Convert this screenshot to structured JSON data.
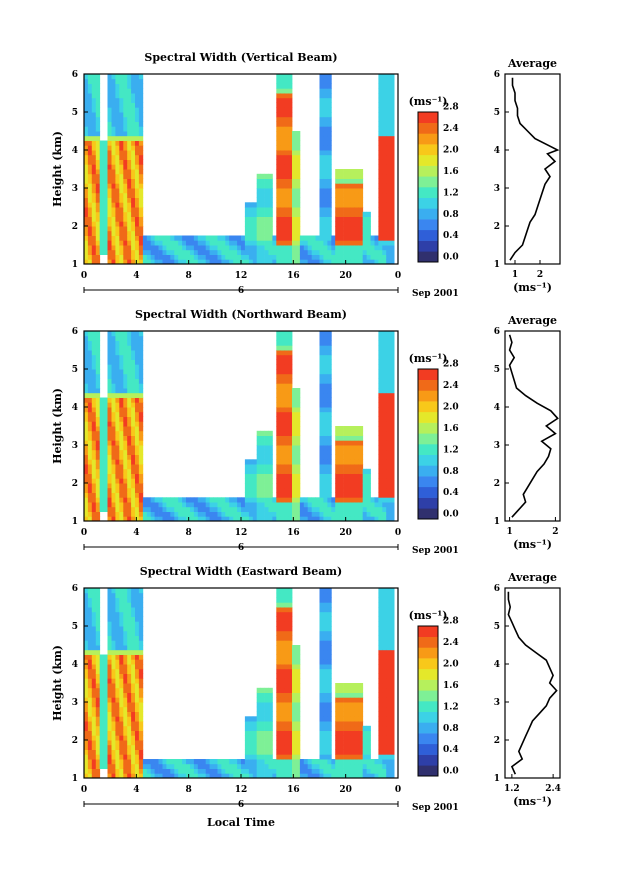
{
  "xlabel_bottom": "Local Time",
  "colorbar": {
    "unit_label": "(ms⁻¹)",
    "ticks": [
      "0.0",
      "0.4",
      "0.8",
      "1.2",
      "1.6",
      "2.0",
      "2.4",
      "2.8"
    ],
    "colors": [
      "#30306e",
      "#2e3fa8",
      "#2f5fd8",
      "#3a86f0",
      "#3aaef0",
      "#3cd2e6",
      "#44e8c4",
      "#7ef096",
      "#b6f05c",
      "#e4e82a",
      "#f8c81a",
      "#f89a16",
      "#f06a18",
      "#f23c22"
    ]
  },
  "chart_data": [
    {
      "type": "heatmap",
      "title": "Spectral Width (Vertical Beam)",
      "ylabel": "Height (km)",
      "ylim": [
        1,
        6
      ],
      "yticks": [
        "1",
        "2",
        "3",
        "4",
        "5",
        "6"
      ],
      "xlim": [
        0,
        24
      ],
      "xticks": [
        "0",
        "4",
        "8",
        "12",
        "16",
        "20",
        "0"
      ],
      "date_day": "6",
      "date_label": "Sep 2001",
      "profile": {
        "title": "Average",
        "xlabel": "(ms⁻¹)",
        "xlim": [
          0.6,
          2.8
        ],
        "xticks": [
          "1",
          "2"
        ],
        "xtick_values": [
          1,
          2
        ],
        "heights": [
          1.1,
          1.3,
          1.5,
          1.7,
          1.9,
          2.1,
          2.3,
          2.5,
          2.7,
          2.9,
          3.1,
          3.3,
          3.5,
          3.7,
          3.9,
          4.0,
          4.1,
          4.3,
          4.5,
          4.7,
          4.9,
          5.1,
          5.3,
          5.5,
          5.7,
          5.9
        ],
        "values": [
          0.8,
          1.0,
          1.3,
          1.4,
          1.5,
          1.6,
          1.8,
          1.9,
          2.0,
          2.1,
          2.2,
          2.4,
          2.2,
          2.6,
          2.3,
          2.7,
          2.4,
          1.8,
          1.5,
          1.2,
          1.1,
          1.1,
          1.0,
          1.0,
          0.9,
          0.9
        ]
      }
    },
    {
      "type": "heatmap",
      "title": "Spectral Width (Northward Beam)",
      "ylabel": "Height (km)",
      "ylim": [
        1,
        6
      ],
      "yticks": [
        "1",
        "2",
        "3",
        "4",
        "5",
        "6"
      ],
      "xlim": [
        0,
        24
      ],
      "xticks": [
        "0",
        "4",
        "8",
        "12",
        "16",
        "20",
        "0"
      ],
      "date_day": "6",
      "date_label": "Sep 2001",
      "profile": {
        "title": "Average",
        "xlabel": "(ms⁻¹)",
        "xlim": [
          0.9,
          2.1
        ],
        "xticks": [
          "1",
          "2"
        ],
        "xtick_values": [
          1,
          2
        ],
        "heights": [
          1.1,
          1.3,
          1.5,
          1.7,
          1.9,
          2.1,
          2.3,
          2.5,
          2.7,
          2.9,
          3.1,
          3.3,
          3.5,
          3.7,
          3.9,
          4.1,
          4.3,
          4.5,
          4.7,
          4.9,
          5.1,
          5.3,
          5.5,
          5.7,
          5.9
        ],
        "values": [
          1.05,
          1.2,
          1.35,
          1.3,
          1.4,
          1.5,
          1.6,
          1.75,
          1.85,
          1.9,
          1.7,
          2.0,
          1.8,
          2.05,
          1.9,
          1.6,
          1.35,
          1.15,
          1.1,
          1.05,
          1.0,
          1.1,
          1.0,
          1.05,
          1.0
        ]
      }
    },
    {
      "type": "heatmap",
      "title": "Spectral Width (Eastward Beam)",
      "ylabel": "Height (km)",
      "ylim": [
        1,
        6
      ],
      "yticks": [
        "1",
        "2",
        "3",
        "4",
        "5",
        "6"
      ],
      "xlim": [
        0,
        24
      ],
      "xticks": [
        "0",
        "4",
        "8",
        "12",
        "16",
        "20",
        "0"
      ],
      "date_day": "6",
      "date_label": "Sep 2001",
      "profile": {
        "title": "Average",
        "xlabel": "(ms⁻¹)",
        "xlim": [
          1.0,
          2.6
        ],
        "xticks": [
          "1.2",
          "2.4"
        ],
        "xtick_values": [
          1.2,
          2.4
        ],
        "heights": [
          1.1,
          1.3,
          1.5,
          1.7,
          1.9,
          2.1,
          2.3,
          2.5,
          2.7,
          2.9,
          3.1,
          3.3,
          3.5,
          3.7,
          3.9,
          4.1,
          4.3,
          4.5,
          4.7,
          4.9,
          5.1,
          5.3,
          5.5,
          5.7,
          5.9
        ],
        "values": [
          1.3,
          1.2,
          1.5,
          1.4,
          1.5,
          1.6,
          1.7,
          1.8,
          2.0,
          2.2,
          2.3,
          2.5,
          2.3,
          2.4,
          2.3,
          2.2,
          1.9,
          1.6,
          1.4,
          1.3,
          1.2,
          1.1,
          1.15,
          1.1,
          1.1
        ]
      }
    }
  ]
}
